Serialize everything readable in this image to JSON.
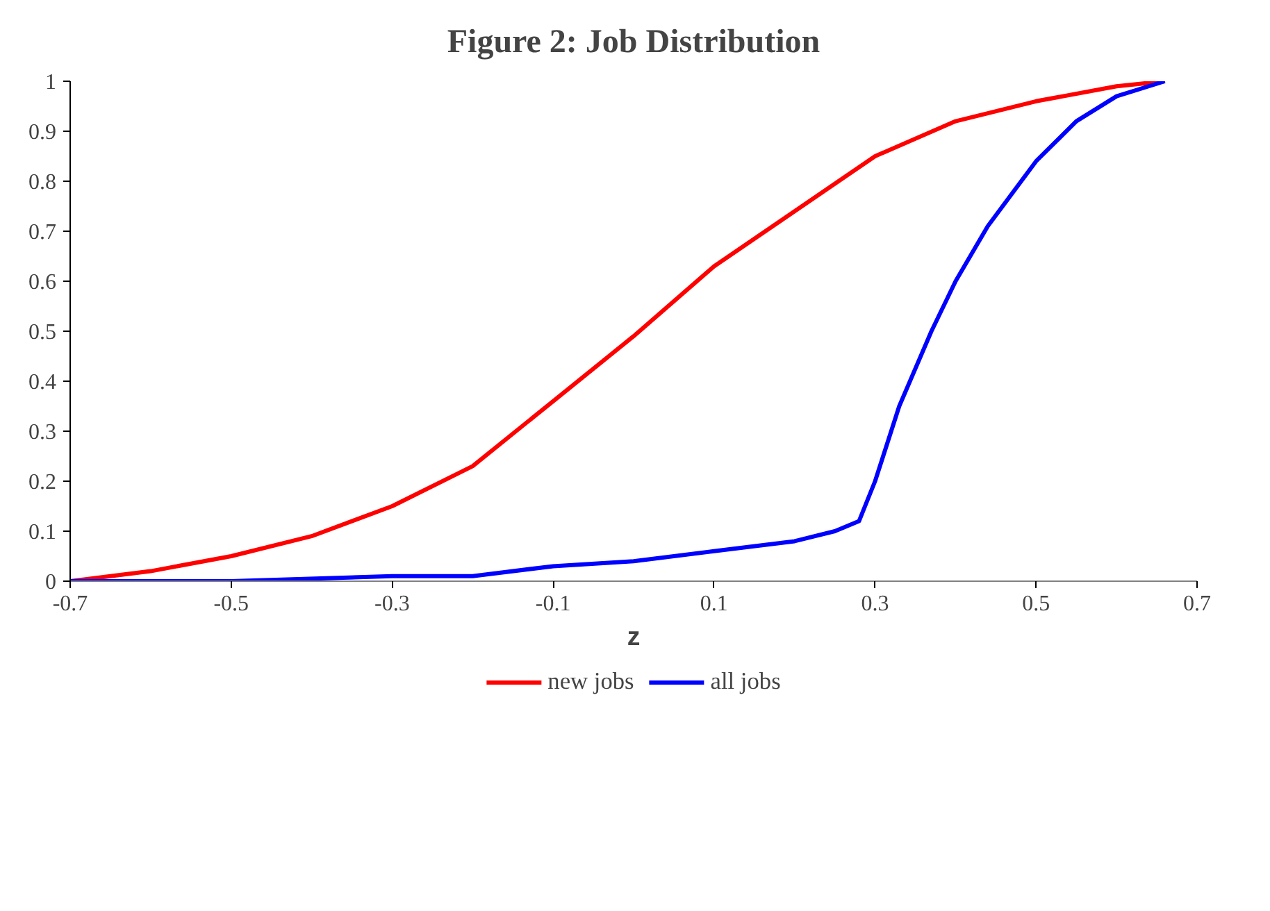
{
  "chart_data": {
    "type": "line",
    "title": "Figure 2: Job Distribution",
    "xlabel": "z",
    "xlim": [
      -0.7,
      0.7
    ],
    "xticks": [
      -0.7,
      -0.5,
      -0.3,
      -0.1,
      0.1,
      0.3,
      0.5,
      0.7
    ],
    "ylim": [
      0,
      1
    ],
    "yticks": [
      0,
      0.1,
      0.2,
      0.3,
      0.4,
      0.5,
      0.6,
      0.7,
      0.8,
      0.9,
      1
    ],
    "grid": false,
    "legend": "bottom",
    "marker": "none",
    "line_style": "solid",
    "series": [
      {
        "name": "new jobs",
        "color": "#ff0000",
        "x": [
          -0.7,
          -0.6,
          -0.5,
          -0.4,
          -0.3,
          -0.2,
          -0.1,
          0,
          0.1,
          0.2,
          0.3,
          0.4,
          0.5,
          0.6,
          0.66
        ],
        "values": [
          0,
          0.02,
          0.05,
          0.09,
          0.15,
          0.23,
          0.36,
          0.49,
          0.63,
          0.74,
          0.85,
          0.92,
          0.96,
          0.99,
          1
        ]
      },
      {
        "name": "all jobs",
        "color": "#0000ff",
        "x": [
          -0.7,
          -0.5,
          -0.3,
          -0.2,
          -0.1,
          0,
          0.1,
          0.2,
          0.25,
          0.28,
          0.3,
          0.33,
          0.37,
          0.4,
          0.44,
          0.5,
          0.55,
          0.6,
          0.66
        ],
        "values": [
          0,
          0,
          0.01,
          0.01,
          0.03,
          0.04,
          0.06,
          0.08,
          0.1,
          0.12,
          0.2,
          0.35,
          0.5,
          0.6,
          0.71,
          0.84,
          0.92,
          0.97,
          1
        ]
      }
    ]
  }
}
